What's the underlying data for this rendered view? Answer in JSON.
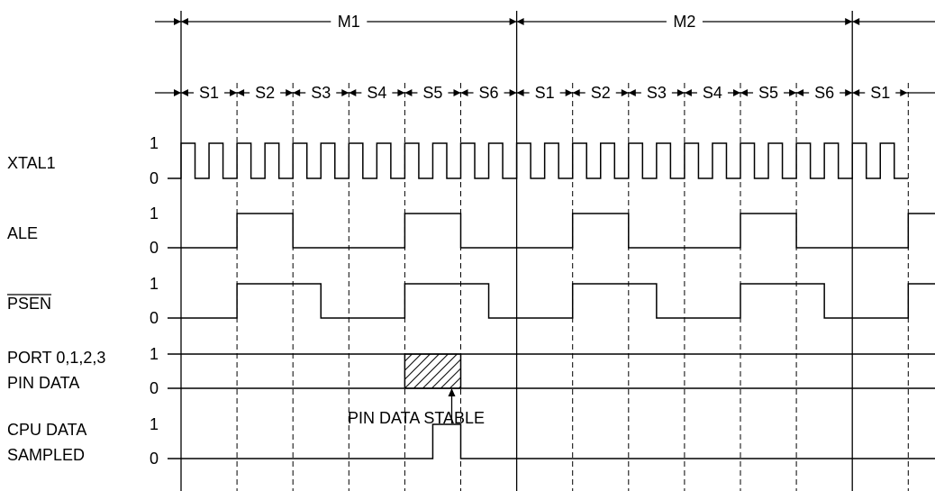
{
  "machine_cycles": [
    "M1",
    "M2"
  ],
  "states": [
    "S1",
    "S2",
    "S3",
    "S4",
    "S5",
    "S6",
    "S1",
    "S2",
    "S3",
    "S4",
    "S5",
    "S6",
    "S1"
  ],
  "level_high": "1",
  "level_low": "0",
  "signals": [
    {
      "id": "xtal1",
      "label": [
        "XTAL1"
      ],
      "overline": false,
      "waveform": "clock",
      "clock_periods": 26,
      "transitions": [],
      "initial": 0
    },
    {
      "id": "ale",
      "label": [
        "ALE"
      ],
      "overline": false,
      "waveform": "levels",
      "transitions": [
        1,
        2,
        4,
        5,
        7,
        8,
        10,
        11,
        13
      ],
      "initial": 0
    },
    {
      "id": "psen",
      "label": [
        "PSEN"
      ],
      "overline": true,
      "waveform": "levels",
      "transitions": [
        1,
        2.5,
        4,
        5.5,
        7,
        8.5,
        10,
        11.5,
        13
      ],
      "initial": 0
    },
    {
      "id": "port-pin-data",
      "label": [
        "PORT 0,1,2,3",
        "PIN DATA"
      ],
      "overline": false,
      "waveform": "bus",
      "hatched_window": [
        4,
        5
      ],
      "transitions": [],
      "initial": 0
    },
    {
      "id": "cpu-data-sampled",
      "label": [
        "CPU DATA",
        "SAMPLED"
      ],
      "overline": false,
      "waveform": "levels",
      "transitions": [
        4.5,
        5
      ],
      "initial": 0
    }
  ],
  "annotation": {
    "text": "PIN DATA STABLE",
    "at_state_boundary": 5
  }
}
